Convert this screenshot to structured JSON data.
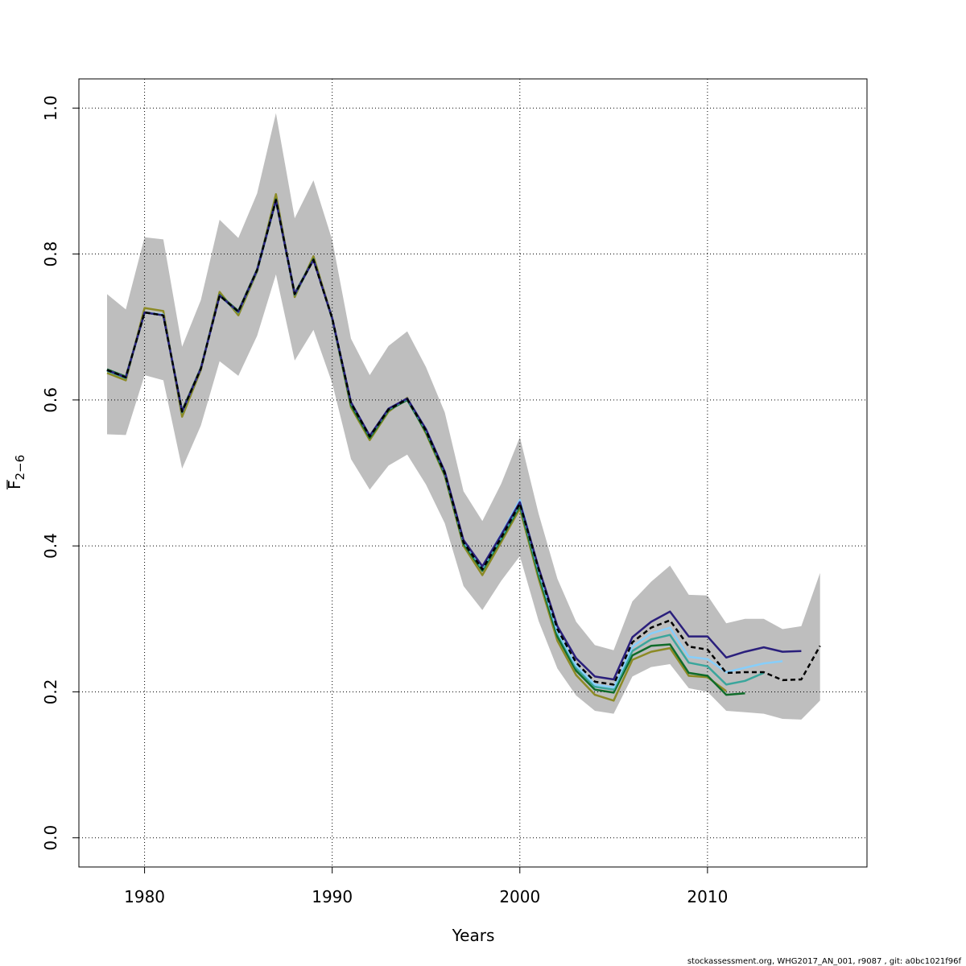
{
  "chart_data": {
    "type": "line",
    "xlabel": "Years",
    "ylabel": "F",
    "ylabel_subscript": "2−6",
    "xlim": [
      1976.5,
      2018.5
    ],
    "ylim": [
      -0.04,
      1.04
    ],
    "x_ticks": [
      1980,
      1990,
      2000,
      2010
    ],
    "y_ticks": [
      0.0,
      0.2,
      0.4,
      0.6,
      0.8,
      1.0
    ],
    "y_tick_labels": [
      "0.0",
      "0.2",
      "0.4",
      "0.6",
      "0.8",
      "1.0"
    ],
    "grid": true,
    "colors": {
      "band": "#bebebe",
      "grid": "#000000",
      "base": "#000000",
      "retro_1": "#2a1f7c",
      "retro_2": "#87cefa",
      "retro_3": "#3aa69c",
      "retro_4": "#0f6b2a",
      "retro_5": "#8c8a25"
    },
    "confidence_band": {
      "years": [
        1978,
        1979,
        1980,
        1981,
        1982,
        1983,
        1984,
        1985,
        1986,
        1987,
        1988,
        1989,
        1990,
        1991,
        1992,
        1993,
        1994,
        1995,
        1996,
        1997,
        1998,
        1999,
        2000,
        2001,
        2002,
        2003,
        2004,
        2005,
        2006,
        2007,
        2008,
        2009,
        2010,
        2011,
        2012,
        2013,
        2014,
        2015,
        2016
      ],
      "upper": [
        0.745,
        0.724,
        0.823,
        0.82,
        0.673,
        0.737,
        0.847,
        0.822,
        0.883,
        0.993,
        0.849,
        0.901,
        0.819,
        0.684,
        0.634,
        0.674,
        0.694,
        0.645,
        0.583,
        0.475,
        0.434,
        0.485,
        0.549,
        0.444,
        0.355,
        0.296,
        0.264,
        0.257,
        0.324,
        0.351,
        0.373,
        0.333,
        0.332,
        0.294,
        0.3,
        0.3,
        0.286,
        0.29,
        0.363
      ],
      "lower": [
        0.553,
        0.552,
        0.634,
        0.627,
        0.506,
        0.565,
        0.653,
        0.633,
        0.688,
        0.772,
        0.654,
        0.696,
        0.623,
        0.519,
        0.477,
        0.51,
        0.525,
        0.484,
        0.431,
        0.345,
        0.312,
        0.352,
        0.386,
        0.297,
        0.232,
        0.195,
        0.174,
        0.17,
        0.221,
        0.234,
        0.238,
        0.205,
        0.2,
        0.174,
        0.172,
        0.17,
        0.163,
        0.162,
        0.188
      ]
    },
    "series": [
      {
        "style": "dashed",
        "color_key": "base",
        "x": [
          1978,
          1979,
          1980,
          1981,
          1982,
          1983,
          1984,
          1985,
          1986,
          1987,
          1988,
          1989,
          1990,
          1991,
          1992,
          1993,
          1994,
          1995,
          1996,
          1997,
          1998,
          1999,
          2000,
          2001,
          2002,
          2003,
          2004,
          2005,
          2006,
          2007,
          2008,
          2009,
          2010,
          2011,
          2012,
          2013,
          2014,
          2015,
          2016
        ],
        "values": [
          0.641,
          0.631,
          0.72,
          0.716,
          0.584,
          0.643,
          0.743,
          0.721,
          0.778,
          0.874,
          0.745,
          0.792,
          0.712,
          0.596,
          0.55,
          0.587,
          0.601,
          0.558,
          0.5,
          0.405,
          0.368,
          0.411,
          0.458,
          0.368,
          0.286,
          0.24,
          0.214,
          0.21,
          0.268,
          0.288,
          0.298,
          0.262,
          0.258,
          0.226,
          0.227,
          0.227,
          0.216,
          0.217,
          0.263
        ]
      },
      {
        "style": "solid",
        "color_key": "retro_1",
        "x": [
          1978,
          1979,
          1980,
          1981,
          1982,
          1983,
          1984,
          1985,
          1986,
          1987,
          1988,
          1989,
          1990,
          1991,
          1992,
          1993,
          1994,
          1995,
          1996,
          1997,
          1998,
          1999,
          2000,
          2001,
          2002,
          2003,
          2004,
          2005,
          2006,
          2007,
          2008,
          2009,
          2010,
          2011,
          2012,
          2013,
          2014,
          2015
        ],
        "values": [
          0.641,
          0.631,
          0.72,
          0.716,
          0.584,
          0.643,
          0.743,
          0.721,
          0.778,
          0.874,
          0.745,
          0.792,
          0.712,
          0.597,
          0.551,
          0.588,
          0.602,
          0.56,
          0.502,
          0.408,
          0.372,
          0.415,
          0.46,
          0.37,
          0.29,
          0.246,
          0.221,
          0.217,
          0.275,
          0.296,
          0.31,
          0.276,
          0.276,
          0.247,
          0.255,
          0.261,
          0.255,
          0.256
        ]
      },
      {
        "style": "solid",
        "color_key": "retro_2",
        "x": [
          1978,
          1979,
          1980,
          1981,
          1982,
          1983,
          1984,
          1985,
          1986,
          1987,
          1988,
          1989,
          1990,
          1991,
          1992,
          1993,
          1994,
          1995,
          1996,
          1997,
          1998,
          1999,
          2000,
          2001,
          2002,
          2003,
          2004,
          2005,
          2006,
          2007,
          2008,
          2009,
          2010,
          2011,
          2012,
          2013,
          2014
        ],
        "values": [
          0.641,
          0.631,
          0.72,
          0.717,
          0.584,
          0.643,
          0.743,
          0.721,
          0.778,
          0.874,
          0.745,
          0.792,
          0.712,
          0.597,
          0.551,
          0.588,
          0.602,
          0.56,
          0.502,
          0.407,
          0.371,
          0.416,
          0.463,
          0.368,
          0.283,
          0.236,
          0.21,
          0.206,
          0.262,
          0.28,
          0.288,
          0.248,
          0.245,
          0.227,
          0.233,
          0.239,
          0.242
        ]
      },
      {
        "style": "solid",
        "color_key": "retro_3",
        "x": [
          1978,
          1979,
          1980,
          1981,
          1982,
          1983,
          1984,
          1985,
          1986,
          1987,
          1988,
          1989,
          1990,
          1991,
          1992,
          1993,
          1994,
          1995,
          1996,
          1997,
          1998,
          1999,
          2000,
          2001,
          2002,
          2003,
          2004,
          2005,
          2006,
          2007,
          2008,
          2009,
          2010,
          2011,
          2012,
          2013
        ],
        "values": [
          0.64,
          0.63,
          0.72,
          0.716,
          0.583,
          0.643,
          0.743,
          0.72,
          0.777,
          0.873,
          0.744,
          0.792,
          0.712,
          0.596,
          0.55,
          0.587,
          0.601,
          0.558,
          0.5,
          0.405,
          0.368,
          0.411,
          0.457,
          0.364,
          0.281,
          0.233,
          0.207,
          0.203,
          0.256,
          0.272,
          0.278,
          0.24,
          0.235,
          0.21,
          0.215,
          0.226
        ]
      },
      {
        "style": "solid",
        "color_key": "retro_4",
        "x": [
          1978,
          1979,
          1980,
          1981,
          1982,
          1983,
          1984,
          1985,
          1986,
          1987,
          1988,
          1989,
          1990,
          1991,
          1992,
          1993,
          1994,
          1995,
          1996,
          1997,
          1998,
          1999,
          2000,
          2001,
          2002,
          2003,
          2004,
          2005,
          2006,
          2007,
          2008,
          2009,
          2010,
          2011,
          2012
        ],
        "values": [
          0.642,
          0.632,
          0.72,
          0.716,
          0.585,
          0.644,
          0.744,
          0.722,
          0.779,
          0.875,
          0.746,
          0.793,
          0.711,
          0.593,
          0.548,
          0.586,
          0.6,
          0.556,
          0.498,
          0.403,
          0.366,
          0.409,
          0.455,
          0.36,
          0.276,
          0.229,
          0.203,
          0.199,
          0.25,
          0.263,
          0.265,
          0.226,
          0.222,
          0.196,
          0.198
        ]
      },
      {
        "style": "solid",
        "color_key": "retro_5",
        "x": [
          1978,
          1979,
          1980,
          1981,
          1982,
          1983,
          1984,
          1985,
          1986,
          1987,
          1988,
          1989,
          1990,
          1991,
          1992,
          1993,
          1994,
          1995,
          1996,
          1997,
          1998,
          1999,
          2000,
          2001,
          2002,
          2003,
          2004,
          2005,
          2006,
          2007,
          2008,
          2009,
          2010,
          2011
        ],
        "values": [
          0.637,
          0.627,
          0.726,
          0.722,
          0.577,
          0.641,
          0.748,
          0.716,
          0.776,
          0.882,
          0.741,
          0.797,
          0.712,
          0.59,
          0.545,
          0.584,
          0.603,
          0.554,
          0.496,
          0.4,
          0.36,
          0.405,
          0.451,
          0.355,
          0.27,
          0.223,
          0.196,
          0.188,
          0.244,
          0.255,
          0.26,
          0.222,
          0.22,
          0.201
        ]
      }
    ]
  },
  "footer": "stockassessment.org, WHG2017_AN_001, r9087 , git: a0bc1021f96f"
}
